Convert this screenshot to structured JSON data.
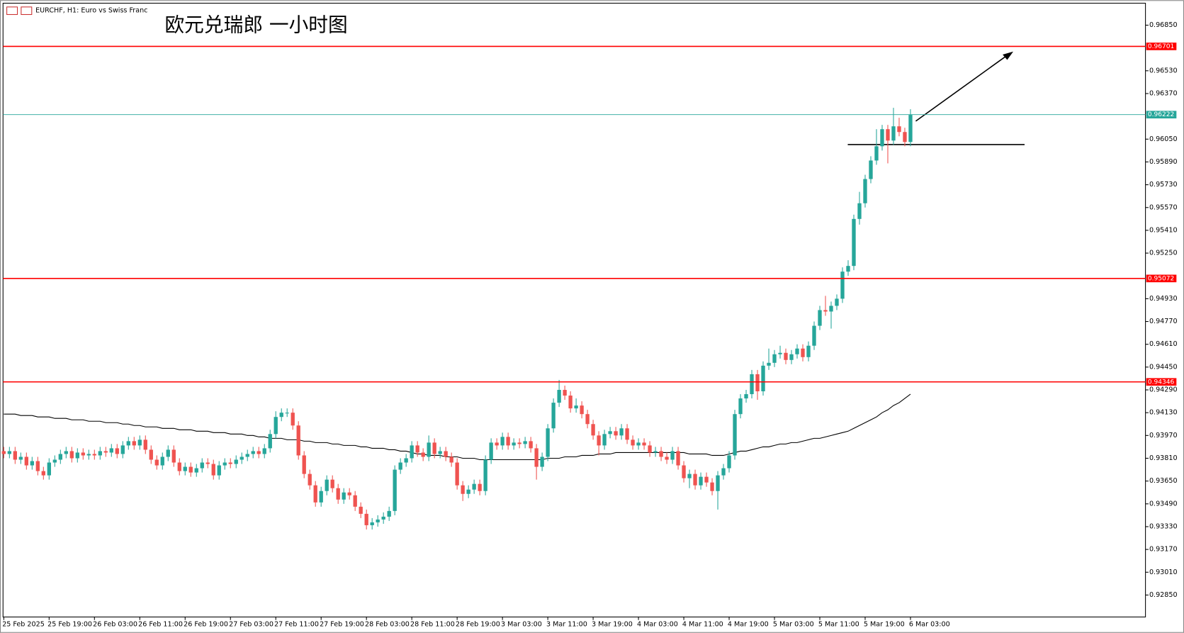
{
  "chart_data": {
    "type": "candlestick",
    "header": "EURCHF, H1: Euro vs Swiss Franc",
    "title": "欧元兑瑞郎 一小时图",
    "up_color": "#26a69a",
    "down_color": "#ef5350",
    "categories": [
      "25 Feb 2025",
      null,
      null,
      null,
      null,
      null,
      null,
      null,
      "25 Feb 19:00",
      null,
      null,
      null,
      null,
      null,
      null,
      null,
      "26 Feb 03:00",
      null,
      null,
      null,
      null,
      null,
      null,
      null,
      "26 Feb 11:00",
      null,
      null,
      null,
      null,
      null,
      null,
      null,
      "26 Feb 19:00",
      null,
      null,
      null,
      null,
      null,
      null,
      null,
      "27 Feb 03:00",
      null,
      null,
      null,
      null,
      null,
      null,
      null,
      "27 Feb 11:00",
      null,
      null,
      null,
      null,
      null,
      null,
      null,
      "27 Feb 19:00",
      null,
      null,
      null,
      null,
      null,
      null,
      null,
      "28 Feb 03:00",
      null,
      null,
      null,
      null,
      null,
      null,
      null,
      "28 Feb 11:00",
      null,
      null,
      null,
      null,
      null,
      null,
      null,
      "28 Feb 19:00",
      null,
      null,
      null,
      null,
      null,
      null,
      null,
      "3 Mar 03:00",
      null,
      null,
      null,
      null,
      null,
      null,
      null,
      "3 Mar 11:00",
      null,
      null,
      null,
      null,
      null,
      null,
      null,
      "3 Mar 19:00",
      null,
      null,
      null,
      null,
      null,
      null,
      null,
      "4 Mar 03:00",
      null,
      null,
      null,
      null,
      null,
      null,
      null,
      "4 Mar 11:00",
      null,
      null,
      null,
      null,
      null,
      null,
      null,
      "4 Mar 19:00",
      null,
      null,
      null,
      null,
      null,
      null,
      null,
      "5 Mar 03:00",
      null,
      null,
      null,
      null,
      null,
      null,
      null,
      "5 Mar 11:00",
      null,
      null,
      null,
      null,
      null,
      null,
      null,
      "5 Mar 19:00",
      null,
      null,
      null,
      null,
      null,
      null,
      null,
      "6 Mar 03:00"
    ],
    "open": [
      0.9386,
      0.9384,
      0.9386,
      0.938,
      0.9382,
      0.9376,
      0.9379,
      0.9372,
      0.9369,
      0.9378,
      0.938,
      0.9384,
      0.9386,
      0.9381,
      0.9385,
      0.9383,
      0.9384,
      0.9383,
      0.9386,
      0.9385,
      0.9388,
      0.9384,
      0.939,
      0.9393,
      0.939,
      0.9394,
      0.9387,
      0.938,
      0.9376,
      0.9382,
      0.9387,
      0.9378,
      0.9372,
      0.9375,
      0.9371,
      0.9374,
      0.9378,
      0.9377,
      0.9369,
      0.9376,
      0.9378,
      0.9377,
      0.938,
      0.9382,
      0.9384,
      0.9386,
      0.9384,
      0.9388,
      0.9398,
      0.941,
      0.9413,
      0.9413,
      0.9404,
      0.9383,
      0.937,
      0.9362,
      0.935,
      0.9358,
      0.9366,
      0.936,
      0.9352,
      0.9357,
      0.9355,
      0.9347,
      0.9342,
      0.9334,
      0.9336,
      0.9338,
      0.934,
      0.9344,
      0.9373,
      0.9378,
      0.9381,
      0.939,
      0.9385,
      0.9382,
      0.9392,
      0.9384,
      0.9386,
      0.9382,
      0.9378,
      0.9362,
      0.9356,
      0.9359,
      0.9363,
      0.9358,
      0.938,
      0.9392,
      0.939,
      0.9396,
      0.939,
      0.9392,
      0.9391,
      0.9393,
      0.9388,
      0.9375,
      0.9382,
      0.9402,
      0.942,
      0.9429,
      0.9425,
      0.9416,
      0.9418,
      0.9412,
      0.9405,
      0.9397,
      0.939,
      0.9398,
      0.94,
      0.9397,
      0.9402,
      0.9394,
      0.939,
      0.9392,
      0.939,
      0.9385,
      0.9386,
      0.9382,
      0.938,
      0.9386,
      0.9376,
      0.9367,
      0.937,
      0.9362,
      0.9368,
      0.9364,
      0.9358,
      0.9369,
      0.9374,
      0.9383,
      0.9412,
      0.9423,
      0.9426,
      0.944,
      0.9428,
      0.9446,
      0.9448,
      0.9454,
      0.9455,
      0.945,
      0.9454,
      0.9458,
      0.9452,
      0.946,
      0.9474,
      0.9485,
      0.9484,
      0.9488,
      0.9493,
      0.9512,
      0.9516,
      0.9549,
      0.956,
      0.9577,
      0.959,
      0.96,
      0.9612,
      0.9604,
      0.9614,
      0.961,
      0.9603
    ],
    "high": [
      0.9389,
      0.9389,
      0.9389,
      0.9385,
      0.9385,
      0.9382,
      0.9382,
      0.9375,
      0.9381,
      0.9383,
      0.9387,
      0.9389,
      0.9389,
      0.9388,
      0.9388,
      0.9387,
      0.9387,
      0.9389,
      0.9389,
      0.9391,
      0.9391,
      0.9393,
      0.9396,
      0.9396,
      0.9397,
      0.9397,
      0.939,
      0.9383,
      0.9385,
      0.939,
      0.939,
      0.9381,
      0.9378,
      0.9378,
      0.9377,
      0.9381,
      0.9381,
      0.938,
      0.9379,
      0.9381,
      0.9381,
      0.9383,
      0.9385,
      0.9387,
      0.9389,
      0.9389,
      0.9391,
      0.9401,
      0.9414,
      0.9416,
      0.9416,
      0.9416,
      0.9407,
      0.9386,
      0.9373,
      0.9365,
      0.9361,
      0.9369,
      0.9369,
      0.9363,
      0.936,
      0.936,
      0.9358,
      0.935,
      0.9345,
      0.9339,
      0.9341,
      0.9343,
      0.9347,
      0.9376,
      0.9381,
      0.9384,
      0.9393,
      0.9393,
      0.9388,
      0.9397,
      0.9395,
      0.9389,
      0.9389,
      0.9385,
      0.9381,
      0.9365,
      0.9362,
      0.9366,
      0.9366,
      0.9383,
      0.9395,
      0.9395,
      0.9399,
      0.9399,
      0.9395,
      0.9395,
      0.9396,
      0.9396,
      0.9391,
      0.9385,
      0.9405,
      0.9423,
      0.9436,
      0.9432,
      0.9428,
      0.9423,
      0.9421,
      0.9415,
      0.9408,
      0.94,
      0.9401,
      0.9403,
      0.9403,
      0.9405,
      0.9405,
      0.9397,
      0.9395,
      0.9395,
      0.9393,
      0.9389,
      0.9389,
      0.9385,
      0.9389,
      0.9389,
      0.9379,
      0.9373,
      0.9373,
      0.9371,
      0.9371,
      0.9367,
      0.9372,
      0.9377,
      0.9386,
      0.9415,
      0.9426,
      0.9429,
      0.9443,
      0.9443,
      0.9449,
      0.9458,
      0.9457,
      0.946,
      0.9458,
      0.9457,
      0.9461,
      0.9461,
      0.9463,
      0.9477,
      0.9488,
      0.9495,
      0.9491,
      0.9496,
      0.9515,
      0.952,
      0.9552,
      0.9568,
      0.958,
      0.9593,
      0.9612,
      0.9615,
      0.9615,
      0.9627,
      0.962,
      0.9613,
      0.9626
    ],
    "low": [
      0.9381,
      0.9381,
      0.9377,
      0.9377,
      0.9373,
      0.9373,
      0.9369,
      0.9366,
      0.9366,
      0.9375,
      0.9377,
      0.9381,
      0.9378,
      0.9378,
      0.938,
      0.938,
      0.938,
      0.938,
      0.9382,
      0.9382,
      0.9381,
      0.9381,
      0.9387,
      0.9387,
      0.9387,
      0.9384,
      0.9377,
      0.9373,
      0.9373,
      0.9379,
      0.9375,
      0.9369,
      0.9369,
      0.9368,
      0.9368,
      0.9371,
      0.9374,
      0.9366,
      0.9366,
      0.9373,
      0.9374,
      0.9374,
      0.9377,
      0.9379,
      0.9381,
      0.9381,
      0.9381,
      0.9385,
      0.9395,
      0.9407,
      0.941,
      0.9401,
      0.938,
      0.9367,
      0.9359,
      0.9347,
      0.9347,
      0.9355,
      0.9357,
      0.9349,
      0.9349,
      0.9352,
      0.9344,
      0.9339,
      0.9331,
      0.9331,
      0.9333,
      0.9335,
      0.9337,
      0.9341,
      0.937,
      0.9375,
      0.9378,
      0.9382,
      0.9379,
      0.9379,
      0.9381,
      0.9381,
      0.9379,
      0.9375,
      0.9359,
      0.9351,
      0.9353,
      0.9356,
      0.9355,
      0.9355,
      0.9377,
      0.9387,
      0.9387,
      0.9387,
      0.9387,
      0.9388,
      0.9388,
      0.9385,
      0.9366,
      0.9372,
      0.9379,
      0.9399,
      0.9417,
      0.9422,
      0.9413,
      0.9413,
      0.9409,
      0.9402,
      0.9394,
      0.9383,
      0.9387,
      0.9395,
      0.9394,
      0.9394,
      0.9391,
      0.9387,
      0.9387,
      0.9387,
      0.9382,
      0.9382,
      0.9379,
      0.9377,
      0.9377,
      0.9373,
      0.9364,
      0.936,
      0.9359,
      0.9359,
      0.9361,
      0.9355,
      0.9345,
      0.9366,
      0.9371,
      0.938,
      0.9409,
      0.942,
      0.9423,
      0.9422,
      0.9425,
      0.9443,
      0.9445,
      0.9451,
      0.9447,
      0.9447,
      0.9451,
      0.9449,
      0.9449,
      0.9457,
      0.9471,
      0.9481,
      0.9472,
      0.9485,
      0.949,
      0.9509,
      0.9513,
      0.9545,
      0.9557,
      0.9574,
      0.9587,
      0.9597,
      0.9588,
      0.9601,
      0.9607,
      0.96,
      0.96
    ],
    "close": [
      0.9384,
      0.9386,
      0.938,
      0.9382,
      0.9376,
      0.9379,
      0.9372,
      0.9369,
      0.9378,
      0.938,
      0.9384,
      0.9386,
      0.9381,
      0.9385,
      0.9383,
      0.9384,
      0.9383,
      0.9386,
      0.9385,
      0.9388,
      0.9384,
      0.939,
      0.9393,
      0.939,
      0.9394,
      0.9387,
      0.938,
      0.9376,
      0.9382,
      0.9387,
      0.9378,
      0.9372,
      0.9375,
      0.9371,
      0.9374,
      0.9378,
      0.9377,
      0.9369,
      0.9376,
      0.9378,
      0.9377,
      0.938,
      0.9382,
      0.9384,
      0.9386,
      0.9384,
      0.9388,
      0.9398,
      0.941,
      0.9413,
      0.9413,
      0.9404,
      0.9383,
      0.937,
      0.9362,
      0.935,
      0.9358,
      0.9366,
      0.936,
      0.9352,
      0.9357,
      0.9355,
      0.9347,
      0.9342,
      0.9334,
      0.9336,
      0.9338,
      0.934,
      0.9344,
      0.9373,
      0.9378,
      0.9381,
      0.939,
      0.9385,
      0.9382,
      0.9392,
      0.9384,
      0.9386,
      0.9382,
      0.9378,
      0.9362,
      0.9356,
      0.9359,
      0.9363,
      0.9358,
      0.938,
      0.9392,
      0.939,
      0.9396,
      0.939,
      0.9392,
      0.9391,
      0.9393,
      0.9388,
      0.9375,
      0.9382,
      0.9402,
      0.942,
      0.9429,
      0.9425,
      0.9416,
      0.9418,
      0.9412,
      0.9405,
      0.9397,
      0.939,
      0.9398,
      0.94,
      0.9397,
      0.9402,
      0.9394,
      0.939,
      0.9392,
      0.939,
      0.9385,
      0.9386,
      0.9382,
      0.938,
      0.9386,
      0.9376,
      0.9367,
      0.937,
      0.9362,
      0.9368,
      0.9364,
      0.9358,
      0.9369,
      0.9374,
      0.9383,
      0.9412,
      0.9423,
      0.9426,
      0.944,
      0.9428,
      0.9446,
      0.9448,
      0.9454,
      0.9455,
      0.945,
      0.9454,
      0.9458,
      0.9452,
      0.946,
      0.9474,
      0.9485,
      0.9484,
      0.9488,
      0.9493,
      0.9512,
      0.9516,
      0.9549,
      0.956,
      0.9577,
      0.959,
      0.96,
      0.9612,
      0.9604,
      0.9614,
      0.961,
      0.9603,
      0.9622
    ],
    "ma": {
      "color": "#000000",
      "values": [
        0.9412,
        0.9412,
        0.9412,
        0.9411,
        0.9411,
        0.9411,
        0.941,
        0.941,
        0.941,
        0.9409,
        0.9409,
        0.9409,
        0.9408,
        0.9408,
        0.9408,
        0.9407,
        0.9407,
        0.9407,
        0.9406,
        0.9406,
        0.9406,
        0.9405,
        0.9405,
        0.9404,
        0.9404,
        0.9403,
        0.9403,
        0.9403,
        0.9402,
        0.9402,
        0.9402,
        0.9401,
        0.9401,
        0.9401,
        0.94,
        0.94,
        0.94,
        0.9399,
        0.9399,
        0.9399,
        0.9398,
        0.9398,
        0.9398,
        0.9397,
        0.9397,
        0.9396,
        0.9396,
        0.9395,
        0.9395,
        0.9395,
        0.9394,
        0.9394,
        0.9394,
        0.9393,
        0.9393,
        0.9392,
        0.9392,
        0.9392,
        0.9391,
        0.9391,
        0.939,
        0.939,
        0.939,
        0.9389,
        0.9389,
        0.9388,
        0.9388,
        0.9388,
        0.9387,
        0.9387,
        0.9386,
        0.9386,
        0.9385,
        0.9384,
        0.9384,
        0.9383,
        0.9383,
        0.9383,
        0.9382,
        0.9382,
        0.9382,
        0.9381,
        0.9381,
        0.9381,
        0.938,
        0.938,
        0.938,
        0.938,
        0.938,
        0.938,
        0.938,
        0.938,
        0.938,
        0.938,
        0.938,
        0.938,
        0.9381,
        0.9381,
        0.9381,
        0.9382,
        0.9382,
        0.9382,
        0.9383,
        0.9383,
        0.9383,
        0.9384,
        0.9384,
        0.9384,
        0.9385,
        0.9385,
        0.9385,
        0.9385,
        0.9385,
        0.9385,
        0.9385,
        0.9385,
        0.9385,
        0.9385,
        0.9385,
        0.9385,
        0.9385,
        0.9384,
        0.9384,
        0.9384,
        0.9384,
        0.9383,
        0.9383,
        0.9383,
        0.9384,
        0.9385,
        0.9386,
        0.9386,
        0.9387,
        0.9388,
        0.9389,
        0.9389,
        0.939,
        0.9391,
        0.9391,
        0.9392,
        0.9392,
        0.9393,
        0.9394,
        0.9395,
        0.9395,
        0.9396,
        0.9397,
        0.9398,
        0.9399,
        0.94,
        0.9402,
        0.9404,
        0.9406,
        0.9408,
        0.941,
        0.9413,
        0.9415,
        0.9418,
        0.942,
        0.9423,
        0.9426
      ]
    },
    "levels": [
      {
        "value": 0.96701,
        "color": "#ff0000"
      },
      {
        "value": 0.95072,
        "color": "#ff0000"
      },
      {
        "value": 0.94346,
        "color": "#ff0000"
      }
    ],
    "current_price": {
      "value": 0.96222,
      "color": "#26a69a"
    },
    "ylim": [
      0.92696,
      0.96999
    ],
    "yticks": [
      {
        "value": 0.9285,
        "label": "0.92850"
      },
      {
        "value": 0.9301,
        "label": "0.93010"
      },
      {
        "value": 0.9317,
        "label": "0.93170"
      },
      {
        "value": 0.9333,
        "label": "0.93330"
      },
      {
        "value": 0.9349,
        "label": "0.93490"
      },
      {
        "value": 0.9365,
        "label": "0.93650"
      },
      {
        "value": 0.9381,
        "label": "0.93810"
      },
      {
        "value": 0.9397,
        "label": "0.93970"
      },
      {
        "value": 0.9413,
        "label": "0.94130"
      },
      {
        "value": 0.9429,
        "label": "0.94290"
      },
      {
        "value": 0.9445,
        "label": "0.94450"
      },
      {
        "value": 0.9461,
        "label": "0.94610"
      },
      {
        "value": 0.9477,
        "label": "0.94770"
      },
      {
        "value": 0.9493,
        "label": "0.94930"
      },
      {
        "value": 0.9525,
        "label": "0.95250"
      },
      {
        "value": 0.9541,
        "label": "0.95410"
      },
      {
        "value": 0.9557,
        "label": "0.95570"
      },
      {
        "value": 0.9573,
        "label": "0.95730"
      },
      {
        "value": 0.9589,
        "label": "0.95890"
      },
      {
        "value": 0.9605,
        "label": "0.96050"
      },
      {
        "value": 0.9637,
        "label": "0.96370"
      },
      {
        "value": 0.9653,
        "label": "0.96530"
      },
      {
        "value": 0.9685,
        "label": "0.96850"
      }
    ]
  }
}
